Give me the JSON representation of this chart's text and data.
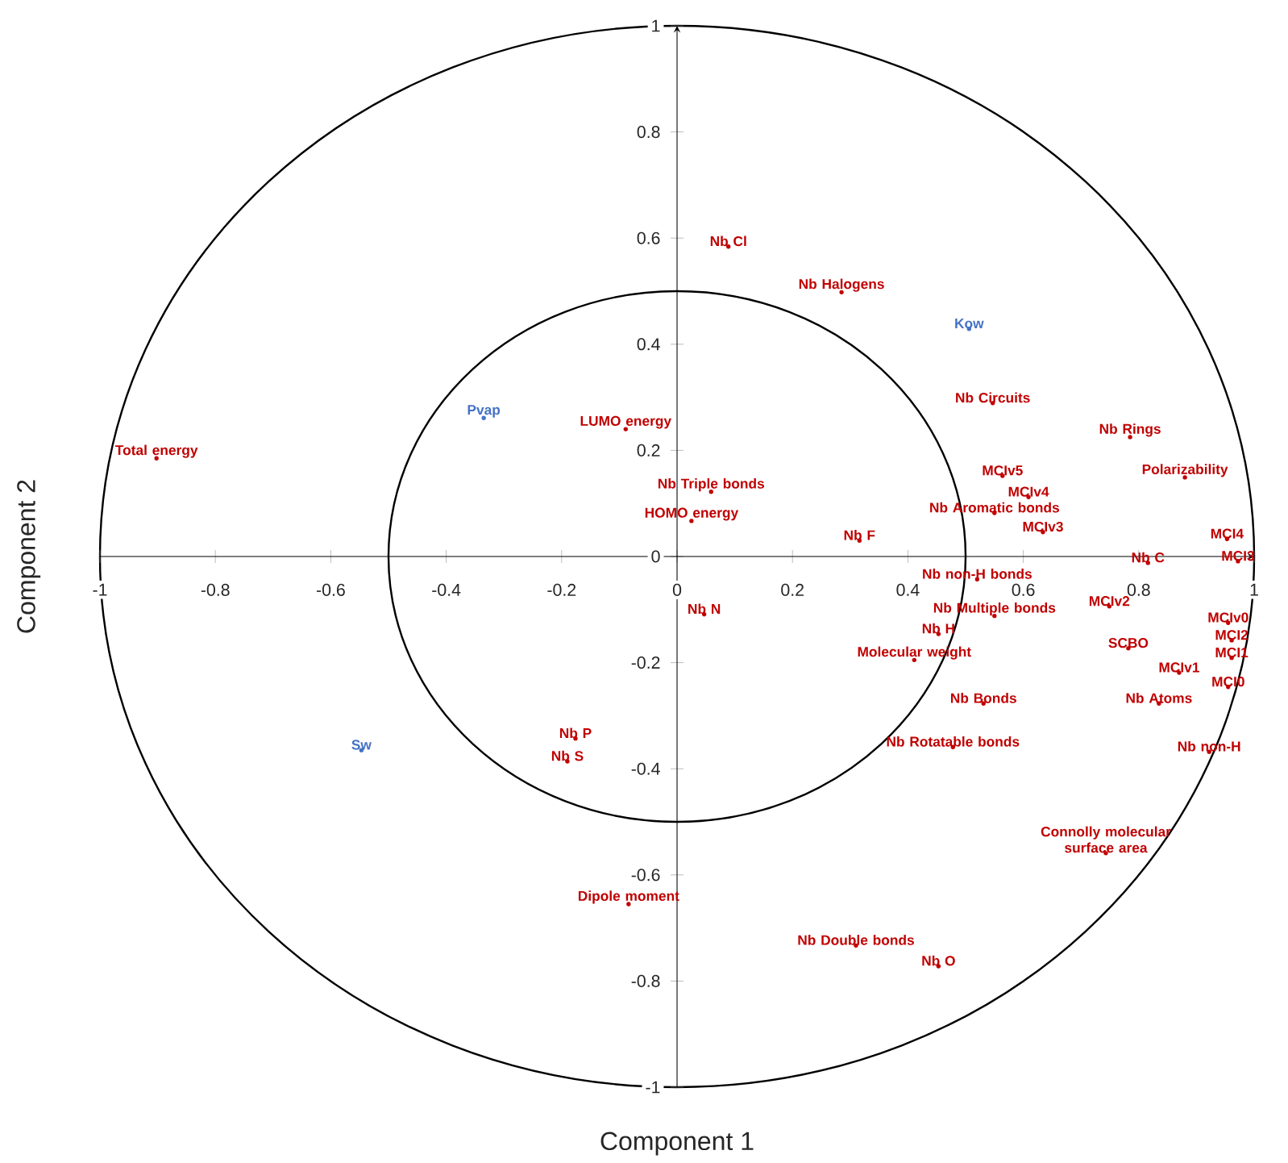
{
  "chart_data": {
    "type": "scatter",
    "xlabel": "Component 1",
    "ylabel": "Component 2",
    "xlim": [
      -1,
      1
    ],
    "ylim": [
      -1,
      1
    ],
    "xticks": [
      -1,
      -0.8,
      -0.6,
      -0.4,
      -0.2,
      0,
      0.2,
      0.4,
      0.6,
      0.8,
      1
    ],
    "yticks": [
      -1,
      -0.8,
      -0.6,
      -0.4,
      -0.2,
      0,
      0.2,
      0.4,
      0.6,
      0.8,
      1
    ],
    "marker": "circle",
    "series": [
      {
        "color": "#c00000",
        "x": [
          0.089,
          0.285,
          0.547,
          0.785,
          0.88,
          0.564,
          0.609,
          0.55,
          0.634,
          -0.902,
          -0.089,
          0.059,
          0.025,
          0.316,
          0.953,
          0.972,
          0.816,
          0.52,
          0.55,
          0.749,
          0.047,
          0.453,
          0.955,
          0.961,
          0.961,
          0.411,
          0.782,
          0.87,
          0.955,
          0.531,
          0.835,
          0.478,
          0.922,
          -0.176,
          -0.19,
          0.743,
          -0.084,
          0.31,
          0.453
        ],
        "values": [
          0.584,
          0.498,
          0.289,
          0.225,
          0.149,
          0.152,
          0.112,
          0.082,
          0.046,
          0.185,
          0.24,
          0.122,
          0.067,
          0.03,
          0.033,
          -0.009,
          -0.012,
          -0.043,
          -0.112,
          -0.094,
          -0.109,
          -0.146,
          -0.125,
          -0.158,
          -0.191,
          -0.195,
          -0.173,
          -0.219,
          -0.246,
          -0.277,
          -0.277,
          -0.359,
          -0.368,
          -0.343,
          -0.386,
          -0.559,
          -0.655,
          -0.733,
          -0.772
        ],
        "value_labels": [
          "Nb Cl",
          "Nb Halogens",
          "Nb Circuits",
          "Nb Rings",
          "Polarizability",
          "MCIv5",
          "MCIv4",
          "Nb Aromatic bonds",
          "MCIv3",
          "Total energy",
          "LUMO energy",
          "Nb Triple bonds",
          "HOMO energy",
          "Nb F",
          "MCI4",
          "MCI3",
          "Nb C",
          "Nb non-H bonds",
          "Nb Multiple bonds",
          "MCIv2",
          "Nb N",
          "Nb H",
          "MCIv0",
          "MCI2",
          "MCI1",
          "Molecular weight",
          "SCBO",
          "MCIv1",
          "MCI0",
          "Nb Bonds",
          "Nb Atoms",
          "Nb Rotatable bonds",
          "Nb non-H",
          "Nb P",
          "Nb S",
          "Connolly molecular surface area",
          "Dipole moment",
          "Nb Double bonds",
          "Nb O"
        ]
      },
      {
        "color": "#4472c4",
        "x": [
          0.506,
          -0.335,
          -0.547
        ],
        "values": [
          0.429,
          0.261,
          -0.365
        ],
        "value_labels": [
          "Kow",
          "Pvap",
          "Sw"
        ]
      }
    ]
  }
}
